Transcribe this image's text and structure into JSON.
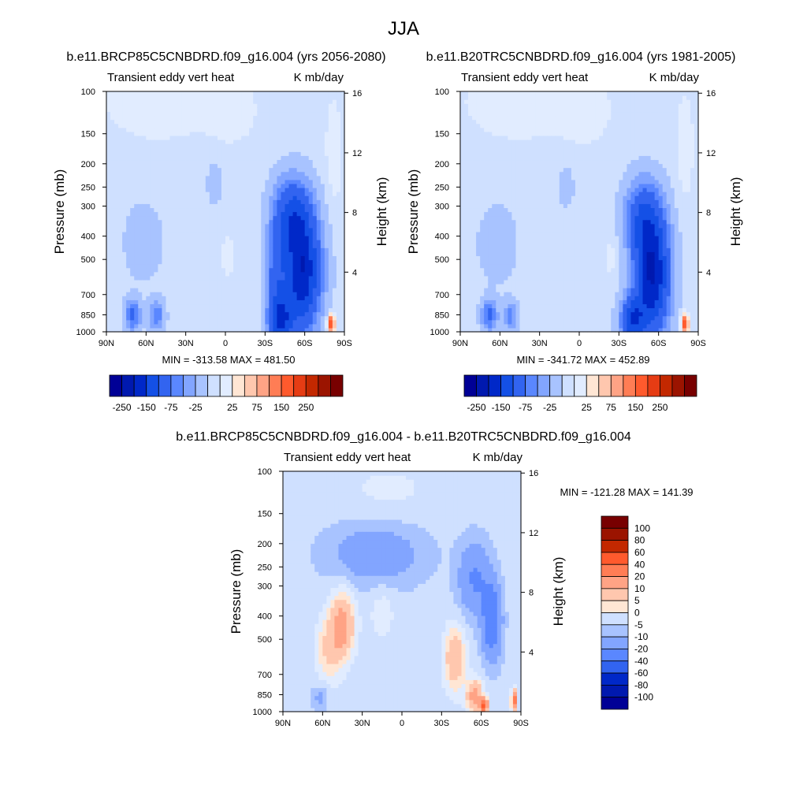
{
  "figure": {
    "title": "JJA",
    "colors": {
      "blue_red_11": [
        "#000096",
        "#0019af",
        "#0028c8",
        "#1450e6",
        "#3264f0",
        "#5a87ff",
        "#82a5ff",
        "#a8c3ff",
        "#cfe0ff",
        "#e1ecff",
        "#ffe6d4",
        "#ffc7ae",
        "#ffa385",
        "#ff7d55",
        "#ff5a2d",
        "#e63c14",
        "#c32800",
        "#9b1400",
        "#780000"
      ],
      "diff_levels_colors": [
        "#000096",
        "#0019af",
        "#0028c8",
        "#1450e6",
        "#3264f0",
        "#5a87ff",
        "#82a5ff",
        "#a8c3ff",
        "#cfe0ff",
        "#e1ecff",
        "#ffe6d4",
        "#ffc7ae",
        "#ffa385",
        "#ff7d55",
        "#ff5a2d",
        "#e63c14",
        "#c32800",
        "#9b1400",
        "#780000"
      ]
    }
  },
  "chart_data": [
    {
      "type": "heatmap",
      "id": "panel_future",
      "title": "b.e11.BRCP85C5CNBDRD.f09_g16.004 (yrs 2056-2080)",
      "left_label": "Transient eddy vert heat",
      "right_label": "K mb/day",
      "xlabel": "",
      "ylabel": "Pressure (mb)",
      "y2label": "Height (km)",
      "x_range": [
        90,
        -90
      ],
      "x_ticks": [
        90,
        60,
        30,
        0,
        -30,
        -60,
        -90
      ],
      "x_tick_labels": [
        "90N",
        "60N",
        "30N",
        "0",
        "30S",
        "60S",
        "90S"
      ],
      "y_range_mb": [
        1000,
        100
      ],
      "y_ticks": [
        1000,
        850,
        700,
        500,
        400,
        300,
        250,
        200,
        150,
        100
      ],
      "y_tick_labels": [
        "1000",
        "850",
        "700",
        "500",
        "400",
        "300",
        "250",
        "200",
        "150",
        "100"
      ],
      "y2_ticks_km": [
        4,
        8,
        12,
        16
      ],
      "y2_tick_labels": [
        "4",
        "8",
        "12",
        "16"
      ],
      "stats": "MIN = -313.58  MAX = 481.50",
      "colorbar": {
        "orientation": "horizontal",
        "levels": [
          -300,
          -250,
          -200,
          -150,
          -100,
          -75,
          -50,
          -25,
          -10,
          10,
          25,
          50,
          75,
          100,
          150,
          200,
          250,
          300
        ],
        "tick_labels": [
          "-250",
          "-150",
          "-75",
          "-25",
          "25",
          "75",
          "150",
          "250"
        ]
      },
      "features": [
        {
          "lat": -58,
          "p": 560,
          "value": -230,
          "slat": 14,
          "sp": 0.55
        },
        {
          "lat": -50,
          "p": 320,
          "value": -120,
          "slat": 14,
          "sp": 0.35
        },
        {
          "lat": -42,
          "p": 900,
          "value": -150,
          "slat": 9,
          "sp": 0.22
        },
        {
          "lat": -38,
          "p": 600,
          "value": -90,
          "slat": 7,
          "sp": 0.5
        },
        {
          "lat": 70,
          "p": 850,
          "value": -100,
          "slat": 6,
          "sp": 0.15
        },
        {
          "lat": 52,
          "p": 850,
          "value": -80,
          "slat": 6,
          "sp": 0.15
        },
        {
          "lat": 62,
          "p": 420,
          "value": -32,
          "slat": 14,
          "sp": 0.35
        },
        {
          "lat": 8,
          "p": 240,
          "value": -28,
          "slat": 6,
          "sp": 0.2
        },
        {
          "lat": -80,
          "p": 920,
          "value": 180,
          "slat": 2.5,
          "sp": 0.08
        },
        {
          "lat": 50,
          "p": 110,
          "value": 14,
          "slat": 40,
          "sp": 0.35
        },
        {
          "lat": -5,
          "p": 120,
          "value": 12,
          "slat": 18,
          "sp": 0.3
        },
        {
          "lat": -82,
          "p": 180,
          "value": 14,
          "slat": 6,
          "sp": 0.5
        },
        {
          "lat": -2,
          "p": 480,
          "value": 12,
          "slat": 5,
          "sp": 0.2
        }
      ],
      "background": -15
    },
    {
      "type": "heatmap",
      "id": "panel_historical",
      "title": "b.e11.B20TRC5CNBDRD.f09_g16.004 (yrs 1981-2005)",
      "left_label": "Transient eddy vert heat",
      "right_label": "K mb/day",
      "xlabel": "",
      "ylabel": "Pressure (mb)",
      "y2label": "Height (km)",
      "x_range": [
        90,
        -90
      ],
      "x_ticks": [
        90,
        60,
        30,
        0,
        -30,
        -60,
        -90
      ],
      "x_tick_labels": [
        "90N",
        "60N",
        "30N",
        "0",
        "30S",
        "60S",
        "90S"
      ],
      "y_range_mb": [
        1000,
        100
      ],
      "y_ticks": [
        1000,
        850,
        700,
        500,
        400,
        300,
        250,
        200,
        150,
        100
      ],
      "y_tick_labels": [
        "1000",
        "850",
        "700",
        "500",
        "400",
        "300",
        "250",
        "200",
        "150",
        "100"
      ],
      "y2_ticks_km": [
        4,
        8,
        12,
        16
      ],
      "y2_tick_labels": [
        "4",
        "8",
        "12",
        "16"
      ],
      "stats": "MIN = -341.72  MAX = 452.89",
      "colorbar": {
        "orientation": "horizontal",
        "levels": [
          -300,
          -250,
          -200,
          -150,
          -100,
          -75,
          -50,
          -25,
          -10,
          10,
          25,
          50,
          75,
          100,
          150,
          200,
          250,
          300
        ],
        "tick_labels": [
          "-250",
          "-150",
          "-75",
          "-25",
          "25",
          "75",
          "150",
          "250"
        ]
      },
      "features": [
        {
          "lat": -55,
          "p": 580,
          "value": -240,
          "slat": 13,
          "sp": 0.55
        },
        {
          "lat": -48,
          "p": 330,
          "value": -110,
          "slat": 14,
          "sp": 0.35
        },
        {
          "lat": -40,
          "p": 900,
          "value": -160,
          "slat": 9,
          "sp": 0.22
        },
        {
          "lat": 68,
          "p": 850,
          "value": -100,
          "slat": 6,
          "sp": 0.15
        },
        {
          "lat": 52,
          "p": 860,
          "value": -70,
          "slat": 6,
          "sp": 0.15
        },
        {
          "lat": 62,
          "p": 430,
          "value": -32,
          "slat": 14,
          "sp": 0.35
        },
        {
          "lat": 10,
          "p": 250,
          "value": -26,
          "slat": 6,
          "sp": 0.2
        },
        {
          "lat": -80,
          "p": 920,
          "value": 160,
          "slat": 2.5,
          "sp": 0.08
        },
        {
          "lat": 45,
          "p": 110,
          "value": 14,
          "slat": 40,
          "sp": 0.35
        },
        {
          "lat": -5,
          "p": 120,
          "value": 12,
          "slat": 18,
          "sp": 0.3
        },
        {
          "lat": -80,
          "p": 170,
          "value": 14,
          "slat": 6,
          "sp": 0.5
        },
        {
          "lat": -25,
          "p": 480,
          "value": 12,
          "slat": 6,
          "sp": 0.2
        }
      ],
      "background": -15
    },
    {
      "type": "heatmap",
      "id": "panel_difference",
      "title": "b.e11.BRCP85C5CNBDRD.f09_g16.004 - b.e11.B20TRC5CNBDRD.f09_g16.004",
      "left_label": "Transient eddy vert heat",
      "right_label": "K mb/day",
      "xlabel": "",
      "ylabel": "Pressure (mb)",
      "y2label": "Height (km)",
      "x_range": [
        90,
        -90
      ],
      "x_ticks": [
        90,
        60,
        30,
        0,
        -30,
        -60,
        -90
      ],
      "x_tick_labels": [
        "90N",
        "60N",
        "30N",
        "0",
        "30S",
        "60S",
        "90S"
      ],
      "y_range_mb": [
        1000,
        100
      ],
      "y_ticks": [
        1000,
        850,
        700,
        500,
        400,
        300,
        250,
        200,
        150,
        100
      ],
      "y_tick_labels": [
        "1000",
        "850",
        "700",
        "500",
        "400",
        "300",
        "250",
        "200",
        "150",
        "100"
      ],
      "y2_ticks_km": [
        4,
        8,
        12,
        16
      ],
      "y2_tick_labels": [
        "4",
        "8",
        "12",
        "16"
      ],
      "stats": "MIN = -121.28  MAX = 141.39",
      "colorbar": {
        "orientation": "vertical",
        "levels": [
          -120,
          -100,
          -80,
          -60,
          -40,
          -20,
          -10,
          -5,
          0,
          5,
          10,
          20,
          40,
          60,
          80,
          100,
          120
        ],
        "tick_labels": [
          "100",
          "80",
          "60",
          "40",
          "20",
          "10",
          "5",
          "0",
          "-5",
          "-10",
          "-20",
          "-40",
          "-60",
          "-80",
          "-100"
        ]
      },
      "features": [
        {
          "lat": 45,
          "p": 430,
          "value": 28,
          "slat": 9,
          "sp": 0.3
        },
        {
          "lat": 55,
          "p": 550,
          "value": 14,
          "slat": 10,
          "sp": 0.3
        },
        {
          "lat": 15,
          "p": 380,
          "value": 6,
          "slat": 10,
          "sp": 0.3
        },
        {
          "lat": -40,
          "p": 600,
          "value": 22,
          "slat": 8,
          "sp": 0.3
        },
        {
          "lat": -55,
          "p": 860,
          "value": 30,
          "slat": 6,
          "sp": 0.15
        },
        {
          "lat": -62,
          "p": 940,
          "value": 70,
          "slat": 3,
          "sp": 0.06
        },
        {
          "lat": -85,
          "p": 900,
          "value": 50,
          "slat": 2,
          "sp": 0.1
        },
        {
          "lat": -68,
          "p": 420,
          "value": -30,
          "slat": 7,
          "sp": 0.35
        },
        {
          "lat": -55,
          "p": 280,
          "value": -18,
          "slat": 12,
          "sp": 0.35
        },
        {
          "lat": 20,
          "p": 220,
          "value": -14,
          "slat": 35,
          "sp": 0.3
        },
        {
          "lat": 62,
          "p": 870,
          "value": -9,
          "slat": 6,
          "sp": 0.12
        },
        {
          "lat": 10,
          "p": 120,
          "value": 4,
          "slat": 40,
          "sp": 0.3
        },
        {
          "lat": -75,
          "p": 120,
          "value": 3,
          "slat": 8,
          "sp": 0.3
        }
      ],
      "background": -3
    }
  ]
}
